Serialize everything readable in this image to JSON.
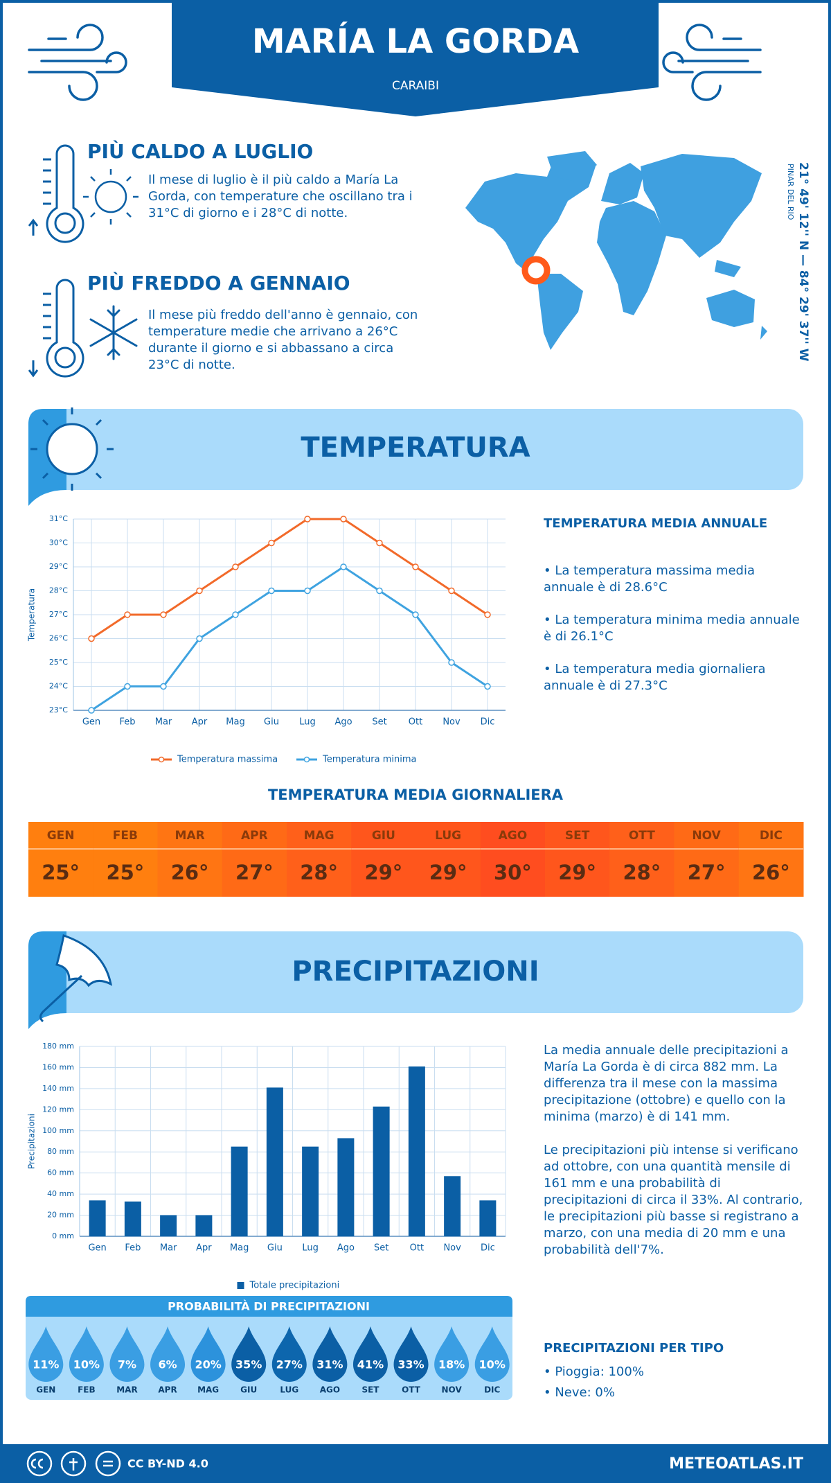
{
  "header": {
    "title": "MARÍA LA GORDA",
    "subtitle": "CARAIBI"
  },
  "highlights": [
    {
      "title": "PIÙ CALDO A LUGLIO",
      "text": "Il mese di luglio è il più caldo a María La Gorda, con temperature che oscillano tra i 31°C di giorno e i 28°C di notte."
    },
    {
      "title": "PIÙ FREDDO A GENNAIO",
      "text": "Il mese più freddo dell'anno è gennaio, con temperature medie che arrivano a 26°C durante il giorno e si abbassano a circa 23°C di notte."
    }
  ],
  "location": {
    "region": "PINAR DEL RIO",
    "coordinates": "21° 49' 12'' N — 84° 29' 37'' W"
  },
  "temperature_section": {
    "title": "TEMPERATURA",
    "summary_title": "TEMPERATURA MEDIA ANNUALE",
    "bullets": [
      "• La temperatura massima media annuale è di 28.6°C",
      "• La temperatura minima media annuale è di 26.1°C",
      "• La temperatura media giornaliera annuale è di 27.3°C"
    ],
    "daily_title": "TEMPERATURA MEDIA GIORNALIERA",
    "daily": {
      "months": [
        "GEN",
        "FEB",
        "MAR",
        "APR",
        "MAG",
        "GIU",
        "LUG",
        "AGO",
        "SET",
        "OTT",
        "NOV",
        "DIC"
      ],
      "values": [
        "25°",
        "25°",
        "26°",
        "27°",
        "28°",
        "29°",
        "29°",
        "30°",
        "29°",
        "28°",
        "27°",
        "26°"
      ],
      "colors": [
        "#ff7f0f",
        "#ff7f0f",
        "#ff7513",
        "#ff6a16",
        "#ff601a",
        "#ff561c",
        "#ff561c",
        "#ff4d1f",
        "#ff561c",
        "#ff601a",
        "#ff6a16",
        "#ff7513"
      ]
    }
  },
  "chart_data": [
    {
      "type": "line",
      "y_label": "Temperatura",
      "categories": [
        "Gen",
        "Feb",
        "Mar",
        "Apr",
        "Mag",
        "Giu",
        "Lug",
        "Ago",
        "Set",
        "Ott",
        "Nov",
        "Dic"
      ],
      "series": [
        {
          "name": "Temperatura massima",
          "color": "#f26a2a",
          "values": [
            26,
            27,
            27,
            28,
            29,
            30,
            31,
            31,
            30,
            29,
            28,
            27
          ]
        },
        {
          "name": "Temperatura minima",
          "color": "#3fa3e0",
          "values": [
            23,
            24,
            24,
            26,
            27,
            28,
            28,
            29,
            28,
            27,
            25,
            24
          ]
        }
      ],
      "ylim": [
        23,
        31
      ],
      "yticks": [
        {
          "value": 23,
          "label": "23°C"
        },
        {
          "value": 24,
          "label": "24°C"
        },
        {
          "value": 25,
          "label": "25°C"
        },
        {
          "value": 26,
          "label": "26°C"
        },
        {
          "value": 27,
          "label": "27°C"
        },
        {
          "value": 28,
          "label": "28°C"
        },
        {
          "value": 29,
          "label": "29°C"
        },
        {
          "value": 30,
          "label": "30°C"
        },
        {
          "value": 31,
          "label": "31°C"
        }
      ],
      "grid": true,
      "legend": "bottom"
    },
    {
      "type": "bar",
      "y_label": "Precipitazioni",
      "categories": [
        "Gen",
        "Feb",
        "Mar",
        "Apr",
        "Mag",
        "Giu",
        "Lug",
        "Ago",
        "Set",
        "Ott",
        "Nov",
        "Dic"
      ],
      "series": [
        {
          "name": "Totale precipitazioni",
          "color": "#0b5fa5",
          "values": [
            34,
            33,
            20,
            20,
            85,
            141,
            85,
            93,
            123,
            161,
            57,
            34
          ]
        }
      ],
      "ylim": [
        0,
        180
      ],
      "yticks": [
        {
          "value": 0,
          "label": "0 mm"
        },
        {
          "value": 20,
          "label": "20 mm"
        },
        {
          "value": 40,
          "label": "40 mm"
        },
        {
          "value": 60,
          "label": "60 mm"
        },
        {
          "value": 80,
          "label": "80 mm"
        },
        {
          "value": 100,
          "label": "100 mm"
        },
        {
          "value": 120,
          "label": "120 mm"
        },
        {
          "value": 140,
          "label": "140 mm"
        },
        {
          "value": 160,
          "label": "160 mm"
        },
        {
          "value": 180,
          "label": "180 mm"
        }
      ],
      "grid": true,
      "legend": "bottom"
    }
  ],
  "precipitation_section": {
    "title": "PRECIPITAZIONI",
    "paragraphs": [
      "La media annuale delle precipitazioni a María La Gorda è di circa 882 mm. La differenza tra il mese con la massima precipitazione (ottobre) e quello con la minima (marzo) è di 141 mm.",
      "Le precipitazioni più intense si verificano ad ottobre, con una quantità mensile di 161 mm e una probabilità di precipitazioni di circa il 33%. Al contrario, le precipitazioni più basse si registrano a marzo, con una media di 20 mm e una probabilità dell'7%."
    ],
    "probability": {
      "title": "PROBABILITÀ DI PRECIPITAZIONI",
      "months": [
        "GEN",
        "FEB",
        "MAR",
        "APR",
        "MAG",
        "GIU",
        "LUG",
        "AGO",
        "SET",
        "OTT",
        "NOV",
        "DIC"
      ],
      "values": [
        "11%",
        "10%",
        "7%",
        "6%",
        "20%",
        "35%",
        "27%",
        "31%",
        "41%",
        "33%",
        "18%",
        "10%"
      ],
      "colors": [
        "#3a9ee3",
        "#3a9ee3",
        "#3a9ee3",
        "#3a9ee3",
        "#2c92dc",
        "#0b5fa5",
        "#0d66ad",
        "#0b5fa5",
        "#0b5fa5",
        "#0b5fa5",
        "#3a9ee3",
        "#3a9ee3"
      ]
    },
    "type_title": "PRECIPITAZIONI PER TIPO",
    "types": [
      "• Pioggia: 100%",
      "• Neve: 0%"
    ]
  },
  "footer": {
    "license": "CC BY-ND 4.0",
    "site": "METEOATLAS.IT"
  }
}
